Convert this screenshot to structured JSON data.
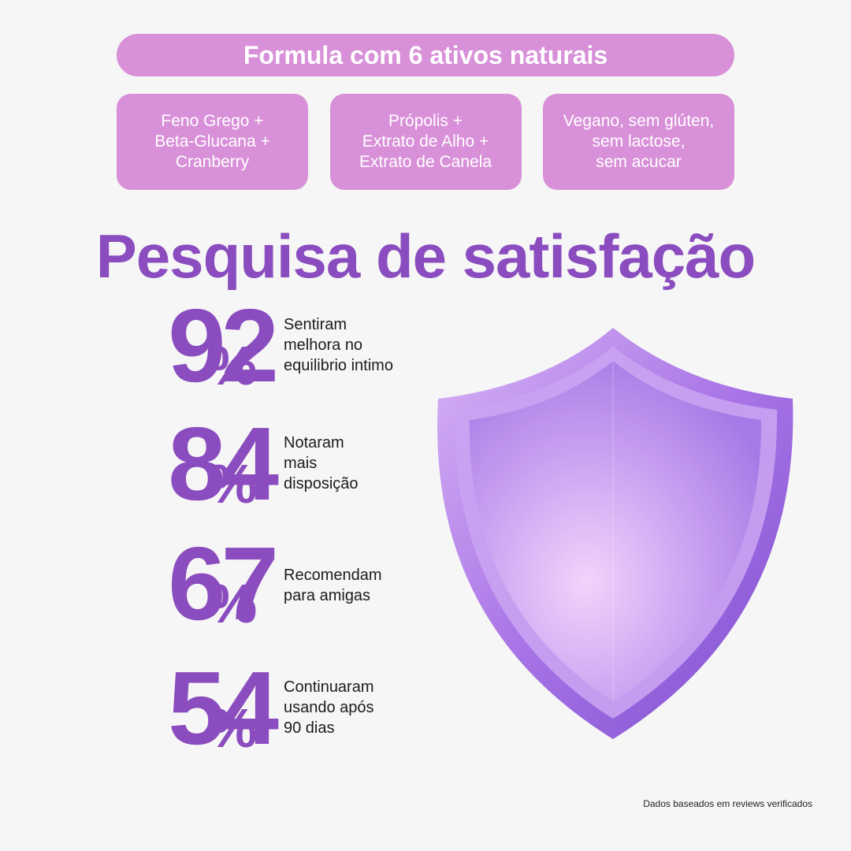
{
  "header": {
    "title": "Formula com 6 ativos naturais"
  },
  "cards": [
    {
      "lines": [
        "Feno Grego +",
        "Beta-Glucana +",
        "Cranberry"
      ]
    },
    {
      "lines": [
        "Própolis +",
        "Extrato de Alho +",
        "Extrato de Canela"
      ]
    },
    {
      "lines": [
        "Vegano, sem glúten,",
        "sem lactose,",
        "sem acucar"
      ]
    }
  ],
  "survey": {
    "title": "Pesquisa de satisfação",
    "stats": [
      {
        "value": 92,
        "unit": "%",
        "lines": [
          "Sentiram",
          "melhora no",
          "equilibrio intimo"
        ]
      },
      {
        "value": 84,
        "unit": "%",
        "lines": [
          "Notaram",
          "mais",
          "disposição"
        ]
      },
      {
        "value": 67,
        "unit": "%",
        "lines": [
          "Recomendam",
          "para amigas"
        ]
      },
      {
        "value": 54,
        "unit": "%",
        "lines": [
          "Continuaram",
          "usando após",
          "90 dias"
        ]
      }
    ]
  },
  "footnote": "Dados baseados em reviews verificados"
}
